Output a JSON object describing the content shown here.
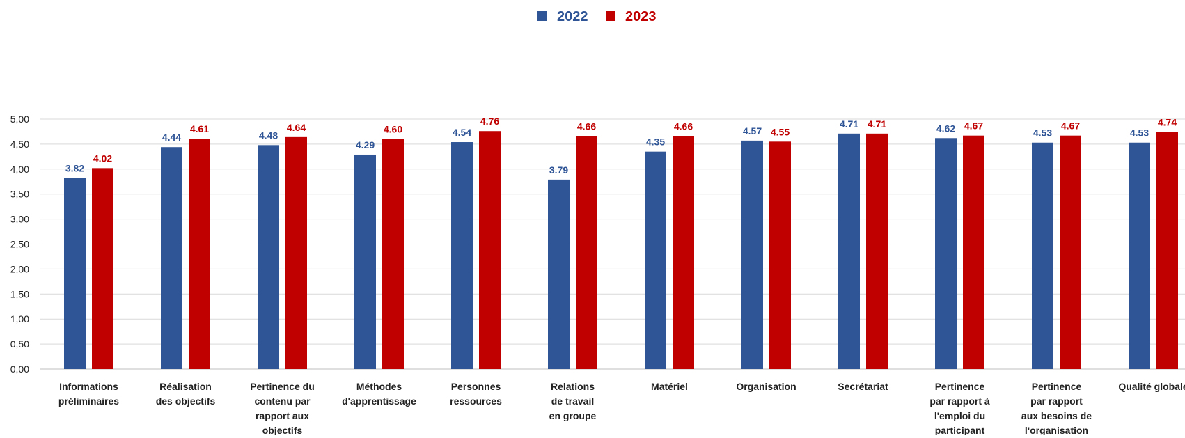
{
  "chart_data": {
    "type": "bar",
    "categories": [
      [
        "Informations",
        "préliminaires"
      ],
      [
        "Réalisation",
        "des objectifs"
      ],
      [
        "Pertinence du",
        "contenu par",
        "rapport aux",
        "objectifs"
      ],
      [
        "Méthodes",
        "d'apprentissage"
      ],
      [
        "Personnes",
        "ressources"
      ],
      [
        "Relations",
        "de travail",
        "en groupe"
      ],
      [
        "Matériel"
      ],
      [
        "Organisation"
      ],
      [
        "Secrétariat"
      ],
      [
        "Pertinence",
        "par rapport à",
        "l'emploi du",
        "participant"
      ],
      [
        "Pertinence",
        "par rapport",
        "aux besoins de",
        "l'organisation"
      ],
      [
        "Qualité globale"
      ]
    ],
    "series": [
      {
        "name": "2022",
        "color": "#2F5597",
        "values": [
          3.82,
          4.44,
          4.48,
          4.29,
          4.54,
          3.79,
          4.35,
          4.57,
          4.71,
          4.62,
          4.53,
          4.53
        ],
        "labels": [
          "3.82",
          "4.44",
          "4.48",
          "4.29",
          "4.54",
          "3.79",
          "4.35",
          "4.57",
          "4.71",
          "4.62",
          "4.53",
          "4.53"
        ]
      },
      {
        "name": "2023",
        "color": "#C00000",
        "values": [
          4.02,
          4.61,
          4.64,
          4.6,
          4.76,
          4.66,
          4.66,
          4.55,
          4.71,
          4.67,
          4.67,
          4.74
        ],
        "labels": [
          "4.02",
          "4.61",
          "4.64",
          "4.60",
          "4.76",
          "4.66",
          "4.66",
          "4.55",
          "4.71",
          "4.67",
          "4.67",
          "4.74"
        ]
      }
    ],
    "ylim": [
      0,
      5
    ],
    "yticks": [
      "0,00",
      "0,50",
      "1,00",
      "1,50",
      "2,00",
      "2,50",
      "3,00",
      "3,50",
      "4,00",
      "4,50",
      "5,00"
    ],
    "grid": true,
    "legend_position": "top-center"
  }
}
